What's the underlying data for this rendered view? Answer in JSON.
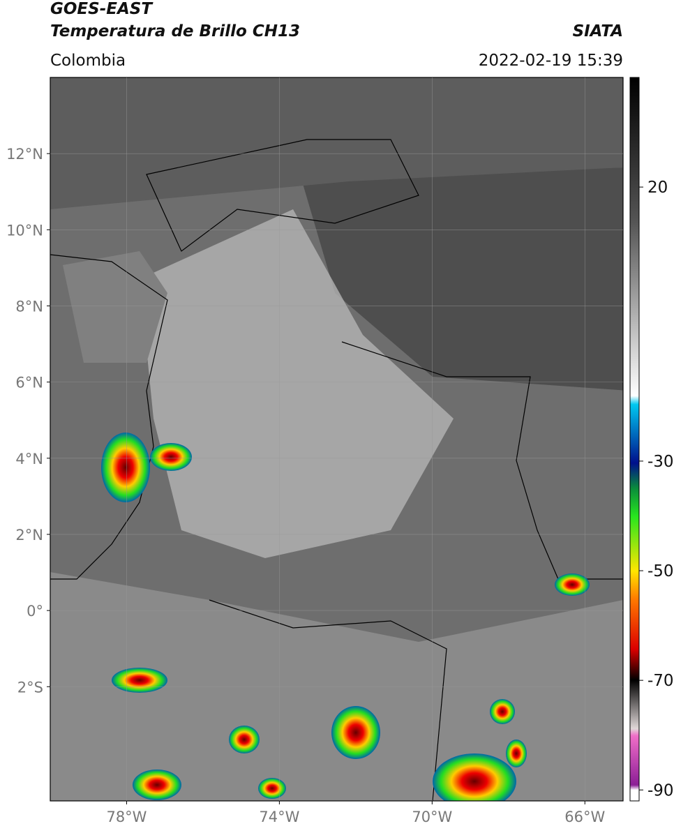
{
  "header": {
    "satellite": "GOES-EAST",
    "title": "Temperatura de Brillo CH13",
    "region": "Colombia",
    "source": "SIATA",
    "datetime": "2022-02-19 15:39"
  },
  "map": {
    "lon_range": [
      -80,
      -65
    ],
    "lat_range": [
      -5,
      14
    ],
    "lon_ticks": [
      {
        "value": -78,
        "label": "78°W"
      },
      {
        "value": -74,
        "label": "74°W"
      },
      {
        "value": -70,
        "label": "70°W"
      },
      {
        "value": -66,
        "label": "66°W"
      }
    ],
    "lat_ticks": [
      {
        "value": 12,
        "label": "12°N"
      },
      {
        "value": 10,
        "label": "10°N"
      },
      {
        "value": 8,
        "label": "8°N"
      },
      {
        "value": 6,
        "label": "6°N"
      },
      {
        "value": 4,
        "label": "4°N"
      },
      {
        "value": 2,
        "label": "2°N"
      },
      {
        "value": 0,
        "label": "0°"
      },
      {
        "value": -2,
        "label": "2°S"
      }
    ],
    "grid": true
  },
  "colorbar": {
    "range": [
      -92,
      40
    ],
    "ticks": [
      20,
      -30,
      -50,
      -70,
      -90
    ]
  }
}
